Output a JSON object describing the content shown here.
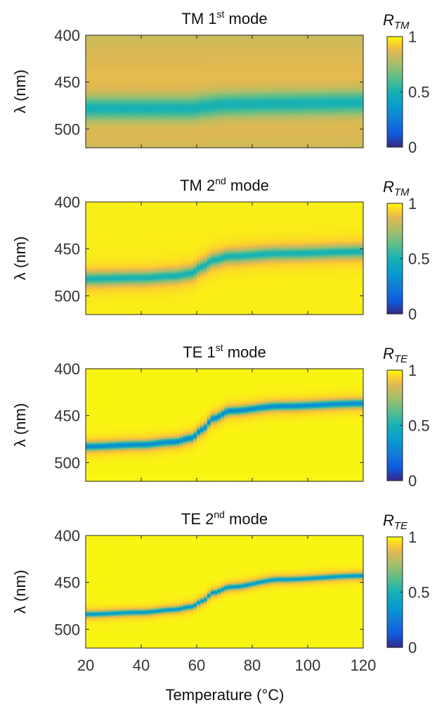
{
  "figure": {
    "xlabel": "Temperature (°C)"
  },
  "chart_data": [
    {
      "type": "heatmap",
      "title_main": "TM 1",
      "title_sup": "st",
      "title_tail": " mode",
      "colorbar_symbol": "R",
      "colorbar_sub": "TM",
      "ylabel": "λ (nm)",
      "xlim": [
        20,
        120
      ],
      "ylim": [
        400,
        520
      ],
      "y_reversed": true,
      "clim": [
        0,
        1
      ],
      "colormap": "parula",
      "x_ticks": [
        "20",
        "40",
        "60",
        "80",
        "100",
        "120"
      ],
      "x_tick_values": [
        20,
        40,
        60,
        80,
        100,
        120
      ],
      "show_x_tick_labels": false,
      "y_ticks": [
        "400",
        "450",
        "500"
      ],
      "y_tick_values": [
        400,
        450,
        500
      ],
      "colorbar_ticks": [
        "0",
        "0.5",
        "1"
      ],
      "colorbar_tick_values": [
        0,
        0.5,
        1
      ],
      "dip_center_nm": [
        [
          20,
          478
        ],
        [
          50,
          478
        ],
        [
          58,
          478
        ],
        [
          63,
          476
        ],
        [
          70,
          474
        ],
        [
          90,
          473
        ],
        [
          120,
          472
        ]
      ],
      "dip_min": 0.5,
      "dip_width_nm": 9,
      "shoulder_width_nm": 28,
      "background_value": 0.88,
      "edge_value": 0.82
    },
    {
      "type": "heatmap",
      "title_main": "TM 2",
      "title_sup": "nd",
      "title_tail": " mode",
      "colorbar_symbol": "R",
      "colorbar_sub": "TM",
      "ylabel": "λ (nm)",
      "xlim": [
        20,
        120
      ],
      "ylim": [
        400,
        520
      ],
      "y_reversed": true,
      "clim": [
        0,
        1
      ],
      "colormap": "parula",
      "x_ticks": [
        "20",
        "40",
        "60",
        "80",
        "100",
        "120"
      ],
      "x_tick_values": [
        20,
        40,
        60,
        80,
        100,
        120
      ],
      "show_x_tick_labels": false,
      "y_ticks": [
        "400",
        "450",
        "500"
      ],
      "y_tick_values": [
        400,
        450,
        500
      ],
      "colorbar_ticks": [
        "0",
        "0.5",
        "1"
      ],
      "colorbar_tick_values": [
        0,
        0.5,
        1
      ],
      "dip_center_nm": [
        [
          20,
          482
        ],
        [
          40,
          481
        ],
        [
          52,
          479
        ],
        [
          58,
          476
        ],
        [
          62,
          469
        ],
        [
          66,
          462
        ],
        [
          72,
          458
        ],
        [
          90,
          455
        ],
        [
          120,
          453
        ]
      ],
      "dip_min": 0.5,
      "dip_width_nm": 4.2,
      "shoulder_width_nm": 10,
      "background_value": 0.98,
      "edge_value": 0.98
    },
    {
      "type": "heatmap",
      "title_main": "TE 1",
      "title_sup": "st",
      "title_tail": " mode",
      "colorbar_symbol": "R",
      "colorbar_sub": "TE",
      "ylabel": "λ (nm)",
      "xlim": [
        20,
        120
      ],
      "ylim": [
        400,
        520
      ],
      "y_reversed": true,
      "clim": [
        0,
        1
      ],
      "colormap": "parula",
      "x_ticks": [
        "20",
        "40",
        "60",
        "80",
        "100",
        "120"
      ],
      "x_tick_values": [
        20,
        40,
        60,
        80,
        100,
        120
      ],
      "show_x_tick_labels": false,
      "y_ticks": [
        "400",
        "450",
        "500"
      ],
      "y_tick_values": [
        400,
        450,
        500
      ],
      "colorbar_ticks": [
        "0",
        "0.5",
        "1"
      ],
      "colorbar_tick_values": [
        0,
        0.5,
        1
      ],
      "dip_center_nm": [
        [
          20,
          483
        ],
        [
          40,
          481
        ],
        [
          52,
          478
        ],
        [
          58,
          474
        ],
        [
          62,
          465
        ],
        [
          66,
          453
        ],
        [
          72,
          445
        ],
        [
          90,
          440
        ],
        [
          120,
          437
        ]
      ],
      "dip_min": 0.3,
      "dip_width_nm": 2.6,
      "shoulder_width_nm": 7,
      "background_value": 0.99,
      "edge_value": 0.99
    },
    {
      "type": "heatmap",
      "title_main": "TE 2",
      "title_sup": "nd",
      "title_tail": " mode",
      "colorbar_symbol": "R",
      "colorbar_sub": "TE",
      "ylabel": "λ (nm)",
      "xlim": [
        20,
        120
      ],
      "ylim": [
        400,
        520
      ],
      "y_reversed": true,
      "clim": [
        0,
        1
      ],
      "colormap": "parula",
      "x_ticks": [
        "20",
        "40",
        "60",
        "80",
        "100",
        "120"
      ],
      "x_tick_values": [
        20,
        40,
        60,
        80,
        100,
        120
      ],
      "show_x_tick_labels": true,
      "y_ticks": [
        "400",
        "450",
        "500"
      ],
      "y_tick_values": [
        400,
        450,
        500
      ],
      "colorbar_ticks": [
        "0",
        "0.5",
        "1"
      ],
      "colorbar_tick_values": [
        0,
        0.5,
        1
      ],
      "dip_center_nm": [
        [
          20,
          484
        ],
        [
          40,
          482
        ],
        [
          52,
          479
        ],
        [
          58,
          476
        ],
        [
          62,
          470
        ],
        [
          66,
          461
        ],
        [
          72,
          455
        ],
        [
          90,
          447
        ],
        [
          120,
          443
        ]
      ],
      "dip_min": 0.35,
      "dip_width_nm": 1.8,
      "shoulder_width_nm": 5,
      "background_value": 0.99,
      "edge_value": 0.99
    }
  ]
}
